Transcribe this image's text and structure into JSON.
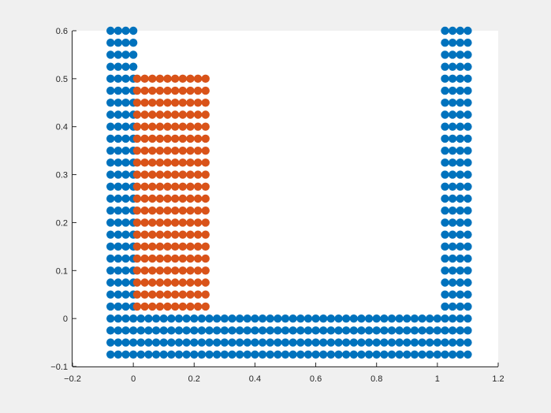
{
  "chart_data": {
    "type": "scatter",
    "title": "",
    "xlabel": "",
    "ylabel": "",
    "xlim": [
      -0.2,
      1.2
    ],
    "ylim": [
      -0.1,
      0.6
    ],
    "x_ticks": [
      "−0.2",
      "0",
      "0.2",
      "0.4",
      "0.6",
      "0.8",
      "1",
      "1.2"
    ],
    "y_ticks": [
      "−0.1",
      "0",
      "0.1",
      "0.2",
      "0.3",
      "0.4",
      "0.5",
      "0.6"
    ],
    "grid": false,
    "background": "#f0f0f0",
    "axes_color": "#ffffff",
    "series": [
      {
        "color": "#0072bd",
        "description": "wall/container particles",
        "point_groups": [
          {
            "x_start": -0.075,
            "x_step": 0.025,
            "x_count": 4,
            "y_start": 0.6,
            "y_step": -0.025,
            "y_count": 28
          },
          {
            "x_start": 1.025,
            "x_step": 0.025,
            "x_count": 4,
            "y_start": 0.6,
            "y_step": -0.025,
            "y_count": 28
          },
          {
            "x_start": 0.025,
            "x_step": 0.025,
            "x_count": 40,
            "y_start": 0.0,
            "y_step": -0.025,
            "y_count": 4
          }
        ]
      },
      {
        "color": "#d95319",
        "description": "fluid particles",
        "point_groups": [
          {
            "x_start": 0.0125,
            "x_step": 0.025,
            "x_count": 10,
            "y_start": 0.5,
            "y_step": -0.025,
            "y_count": 20
          }
        ]
      }
    ]
  }
}
